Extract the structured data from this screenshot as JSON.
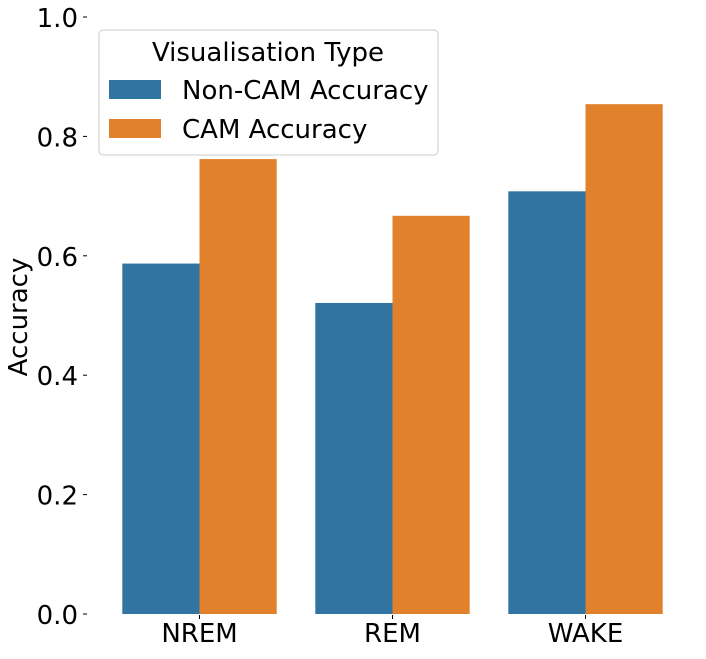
{
  "chart_data": {
    "type": "bar",
    "title": "",
    "xlabel": "",
    "ylabel": "Accuracy",
    "ylim": [
      0.0,
      1.0
    ],
    "yticks": [
      0.0,
      0.2,
      0.4,
      0.6,
      0.8,
      1.0
    ],
    "ytick_labels": [
      "0.0",
      "0.2",
      "0.4",
      "0.6",
      "0.8",
      "1.0"
    ],
    "categories": [
      "NREM",
      "REM",
      "WAKE"
    ],
    "series": [
      {
        "name": "Non-CAM Accuracy",
        "color": "#3274a1",
        "values": [
          0.587,
          0.521,
          0.708
        ]
      },
      {
        "name": "CAM Accuracy",
        "color": "#e1812c",
        "values": [
          0.762,
          0.667,
          0.854
        ]
      }
    ],
    "legend": {
      "title": "Visualisation Type",
      "placement": "upper-left"
    },
    "grid": false
  }
}
